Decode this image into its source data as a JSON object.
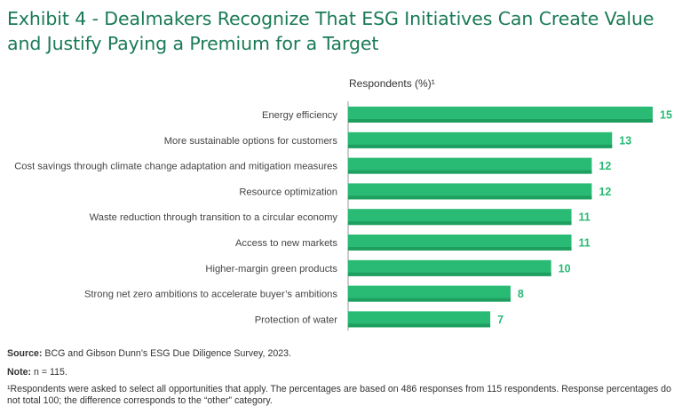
{
  "title": "Exhibit 4 - Dealmakers Recognize That ESG Initiatives Can Create Value and Justify Paying a Premium for a Target",
  "chart_data": {
    "type": "bar",
    "orientation": "horizontal",
    "axis_title": "Respondents (%)¹",
    "categories": [
      "Energy efficiency",
      "More sustainable options for customers",
      "Cost savings through climate change adaptation and mitigation measures",
      "Resource optimization",
      "Waste reduction through transition to a circular economy",
      "Access to new markets",
      "Higher-margin green products",
      "Strong net zero ambitions to accelerate buyer’s ambitions",
      "Protection of water"
    ],
    "values": [
      15,
      13,
      12,
      12,
      11,
      11,
      10,
      8,
      7
    ],
    "xlim": [
      0,
      15
    ],
    "grid": false,
    "colors": {
      "bar": "#29BA74",
      "bar_shade": "#1E9E5F",
      "value_label": "#29BA74",
      "title": "#197A56"
    }
  },
  "footer": {
    "source_label": "Source:",
    "source_text": "BCG and Gibson Dunn’s ESG Due Diligence Survey, 2023.",
    "note_label": "Note:",
    "note_text": "n = 115.",
    "footnote": "¹Respondents were asked to select all opportunities that apply. The percentages are based on 486 responses from 115 respondents. Response percentages do not total 100; the difference corresponds to the “other” category."
  }
}
